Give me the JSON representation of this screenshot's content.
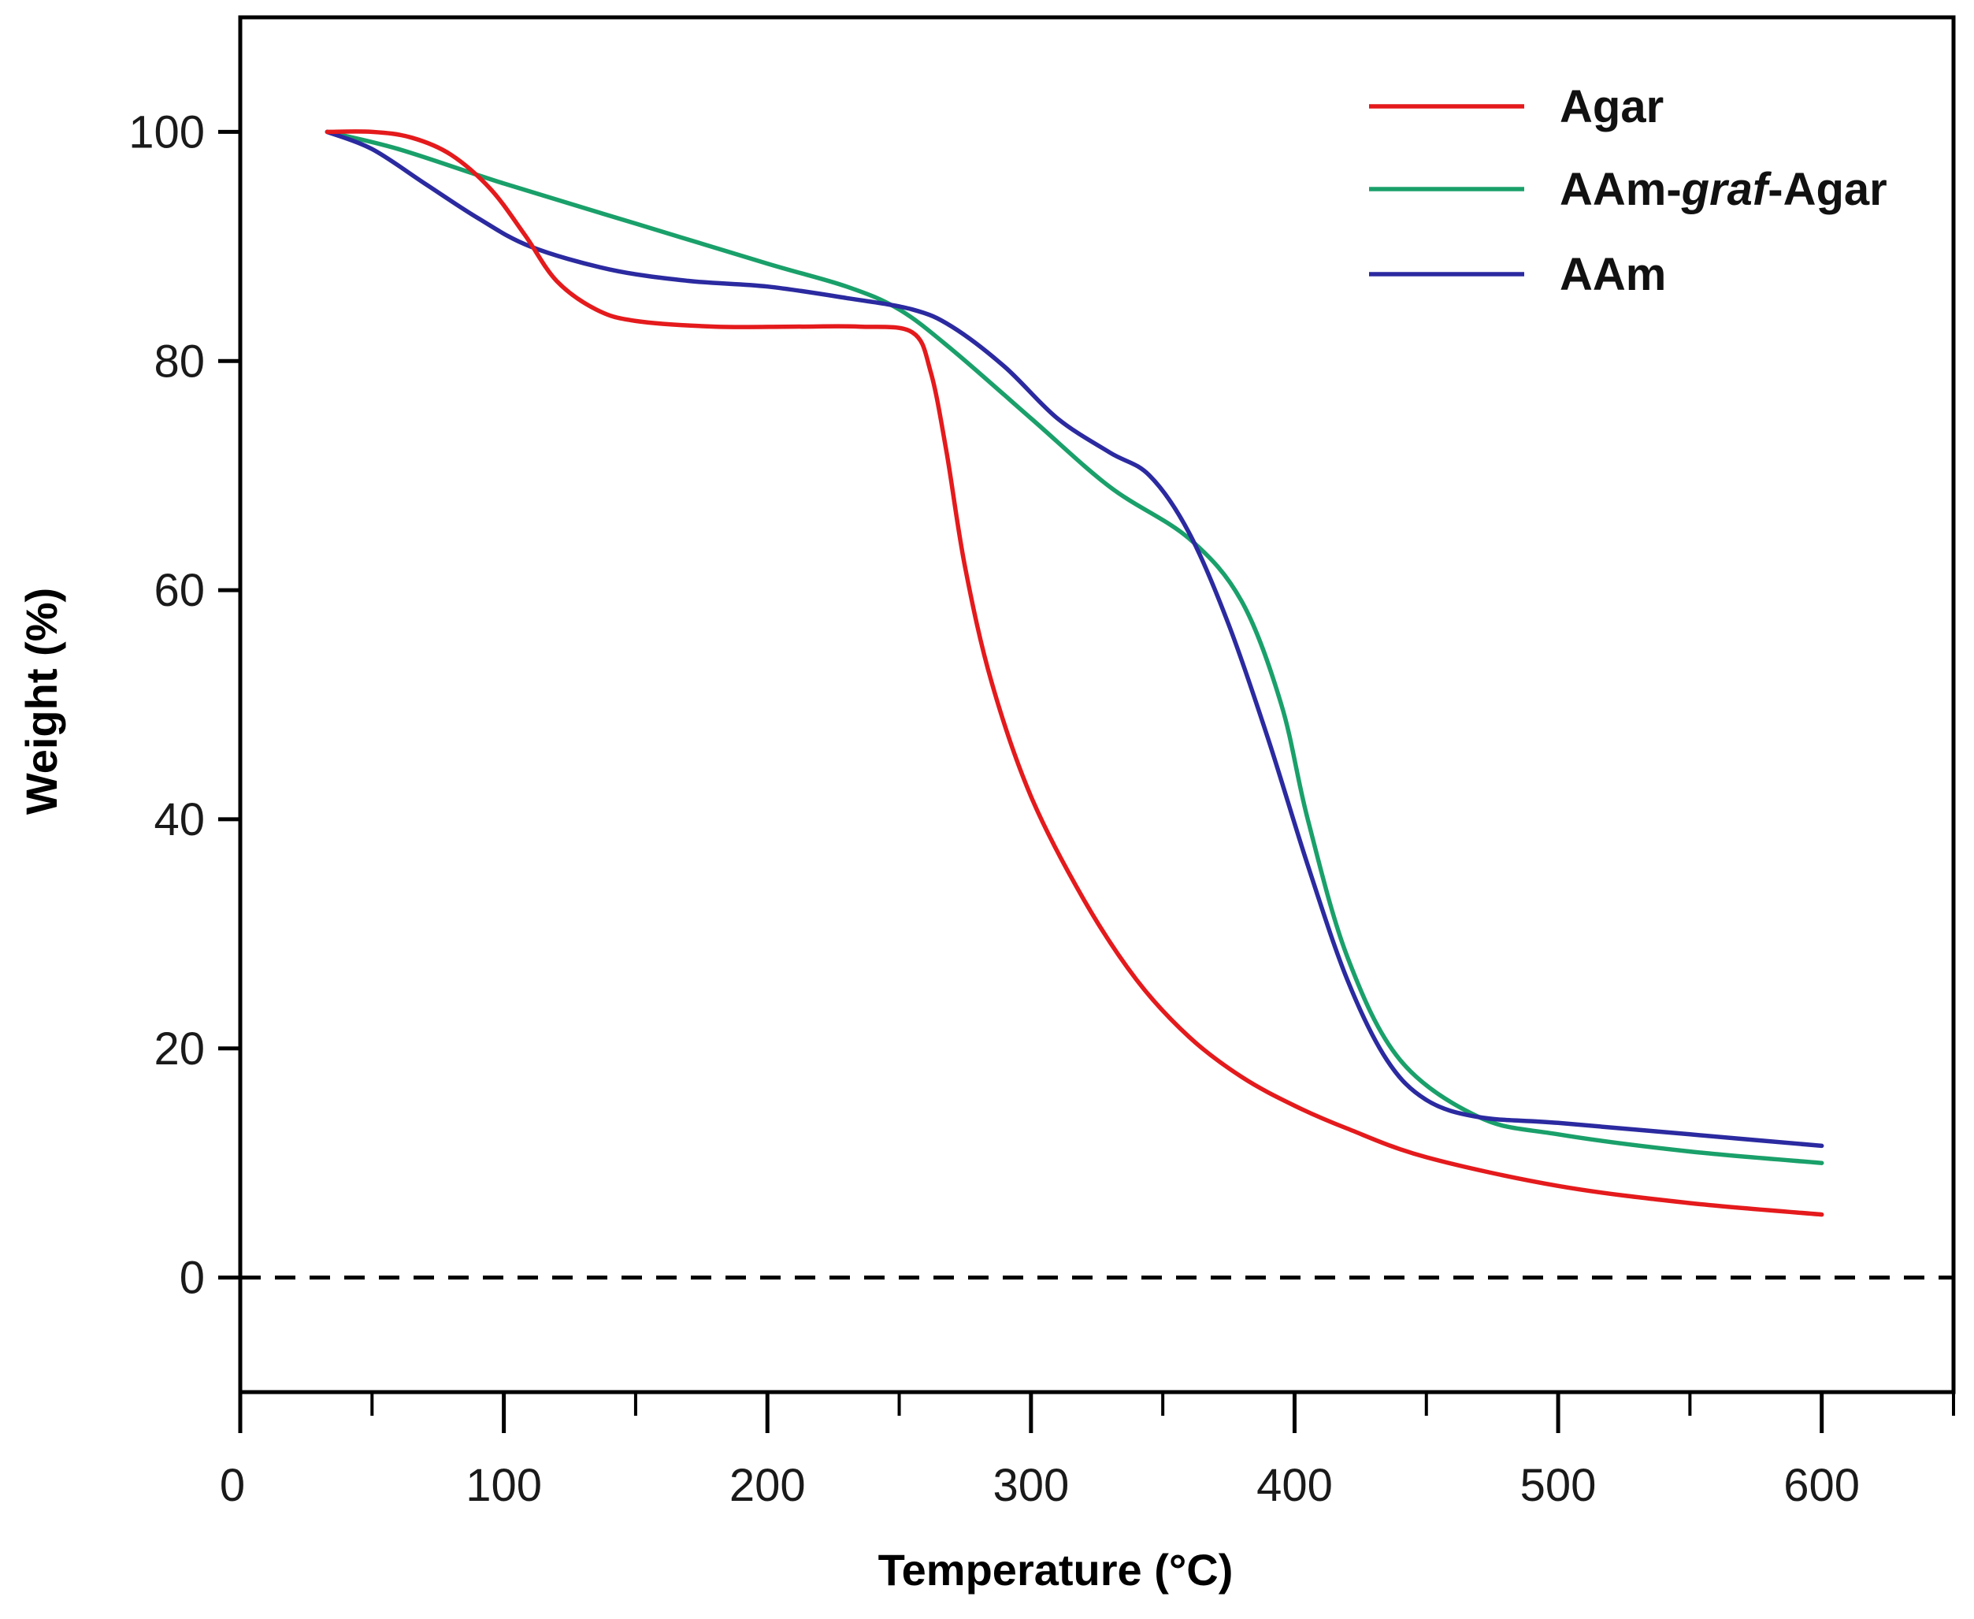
{
  "chart_data": {
    "type": "line",
    "xlabel": "Temperature  (°C)",
    "ylabel": "Weight  (%)",
    "xlim": [
      0,
      650
    ],
    "ylim": [
      -10,
      110
    ],
    "x_ticks": [
      0,
      100,
      200,
      300,
      400,
      500,
      600
    ],
    "x_minor_ticks": [
      50,
      150,
      250,
      350,
      450,
      550,
      650
    ],
    "y_ticks": [
      0,
      20,
      40,
      60,
      80,
      100
    ],
    "reference_line": {
      "y": 0,
      "style": "dashed"
    },
    "legend": {
      "position": "top-right"
    },
    "series": [
      {
        "name": "Agar",
        "color": "#e41a1c",
        "x": [
          33,
          50,
          65,
          80,
          95,
          108,
          120,
          135,
          150,
          180,
          210,
          235,
          255,
          262,
          268,
          275,
          285,
          300,
          320,
          340,
          360,
          380,
          400,
          420,
          450,
          500,
          550,
          600
        ],
        "y": [
          100,
          100,
          99.5,
          98,
          95,
          91,
          87,
          84.5,
          83.5,
          83,
          83,
          83,
          82.5,
          79,
          72,
          62,
          52,
          42,
          33,
          26,
          21,
          17.5,
          15,
          13,
          10.5,
          8,
          6.5,
          5.5
        ]
      },
      {
        "name": "AAm-graf-Agar",
        "color": "#1aa06a",
        "x": [
          33,
          60,
          100,
          150,
          200,
          230,
          250,
          270,
          300,
          330,
          360,
          380,
          395,
          405,
          420,
          440,
          470,
          500,
          550,
          600
        ],
        "y": [
          100,
          98.5,
          95.5,
          92,
          88.5,
          86.5,
          84.5,
          81,
          75,
          69,
          64.5,
          59,
          50,
          40,
          28,
          19,
          14,
          12.5,
          11,
          10
        ]
      },
      {
        "name": "AAm",
        "color": "#2b2aa0",
        "x": [
          33,
          50,
          70,
          90,
          110,
          140,
          170,
          200,
          230,
          255,
          270,
          290,
          310,
          330,
          345,
          360,
          375,
          390,
          405,
          420,
          435,
          450,
          470,
          500,
          550,
          600
        ],
        "y": [
          100,
          98.5,
          95.5,
          92.5,
          90,
          88,
          87,
          86.5,
          85.5,
          84.5,
          83,
          79.5,
          75,
          72,
          70,
          65,
          57,
          47,
          36,
          26,
          19,
          15.5,
          14,
          13.5,
          12.5,
          11.5
        ]
      }
    ],
    "legend_entries": [
      {
        "pre": "AAm-",
        "ital": "graf",
        "post": "-Agar"
      }
    ]
  }
}
